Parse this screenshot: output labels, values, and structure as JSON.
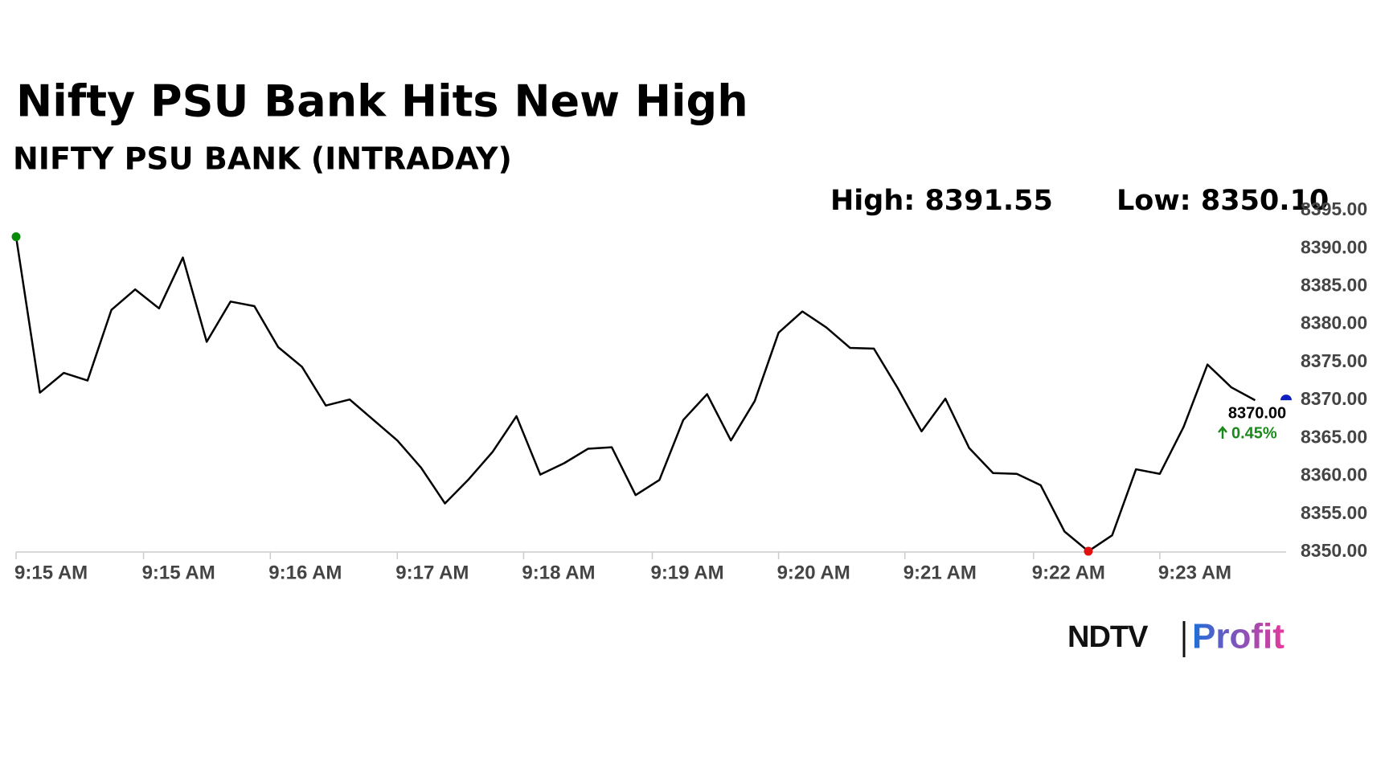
{
  "chart_data": {
    "type": "line",
    "title": "Nifty PSU Bank Hits New High",
    "subtitle": "NIFTY PSU BANK (INTRADAY)",
    "high_label": "High: 8391.55",
    "low_label": "Low: 8350.10",
    "last_label": "8370.00",
    "change_label": "0.45%",
    "color": "#000000",
    "values": [
      8391.55,
      8371.0,
      8373.6,
      8372.6,
      8381.9,
      8384.6,
      8382.1,
      8388.8,
      8377.7,
      8383.0,
      8382.4,
      8377.0,
      8374.4,
      8369.3,
      8370.1,
      8367.4,
      8364.7,
      8361.1,
      8356.4,
      8359.6,
      8363.2,
      8367.9,
      8360.2,
      8361.7,
      8363.6,
      8363.8,
      8357.5,
      8359.5,
      8367.4,
      8370.8,
      8364.7,
      8369.9,
      8378.9,
      8381.7,
      8379.6,
      8376.9,
      8376.8,
      8371.6,
      8365.9,
      8370.2,
      8363.7,
      8360.4,
      8360.3,
      8358.8,
      8352.7,
      8350.1,
      8352.2,
      8360.9,
      8360.3,
      8366.5,
      8374.7,
      8371.7,
      8370.0
    ],
    "xlim": [
      0,
      53.3
    ],
    "xticks": [
      {
        "value": 0,
        "label": "9:15 AM"
      },
      {
        "value": 5.35,
        "label": "9:15 AM"
      },
      {
        "value": 10.67,
        "label": "9:16 AM"
      },
      {
        "value": 16.0,
        "label": "9:17 AM"
      },
      {
        "value": 21.3,
        "label": "9:18 AM"
      },
      {
        "value": 26.7,
        "label": "9:19 AM"
      },
      {
        "value": 32.0,
        "label": "9:20 AM"
      },
      {
        "value": 37.3,
        "label": "9:21 AM"
      },
      {
        "value": 42.7,
        "label": "9:22 AM"
      },
      {
        "value": 48.0,
        "label": "9:23 AM"
      }
    ],
    "ylim": [
      8350,
      8395
    ],
    "yticks": [
      {
        "value": 8350,
        "label": "8350.00"
      },
      {
        "value": 8355,
        "label": "8355.00"
      },
      {
        "value": 8360,
        "label": "8360.00"
      },
      {
        "value": 8365,
        "label": "8365.00"
      },
      {
        "value": 8370,
        "label": "8370.00"
      },
      {
        "value": 8375,
        "label": "8375.00"
      },
      {
        "value": 8380,
        "label": "8380.00"
      },
      {
        "value": 8385,
        "label": "8385.00"
      },
      {
        "value": 8390,
        "label": "8390.00"
      },
      {
        "value": 8395,
        "label": "8395.00"
      }
    ],
    "logo_left": "NDTV",
    "logo_right": "Profit"
  }
}
